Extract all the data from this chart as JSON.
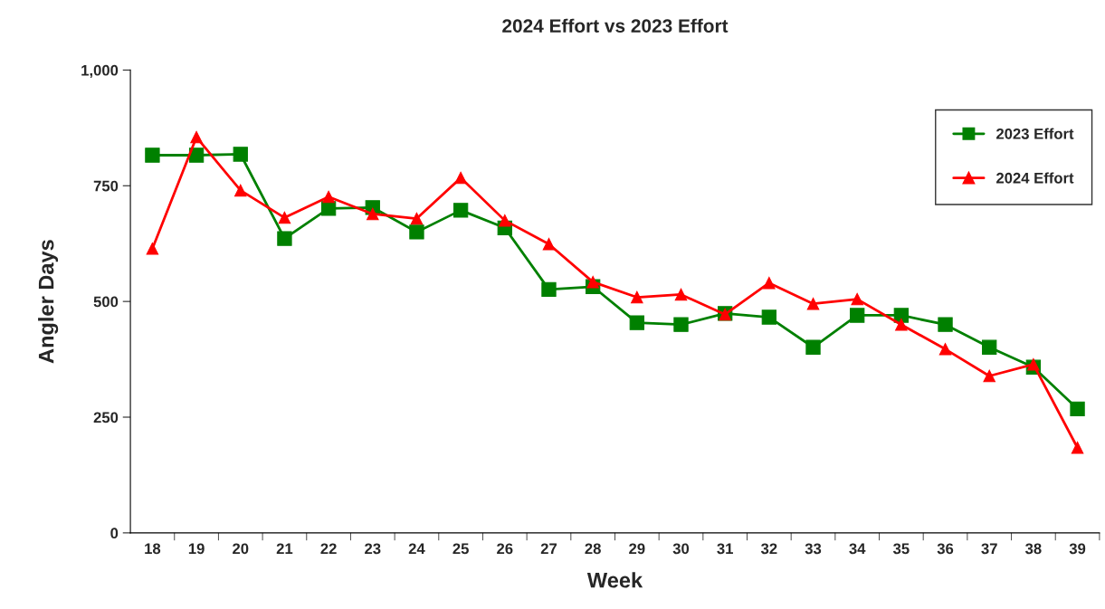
{
  "chart_data": {
    "type": "line",
    "title": "2024 Effort vs 2023 Effort",
    "xlabel": "Week",
    "ylabel": "Angler Days",
    "categories": [
      "18",
      "19",
      "20",
      "21",
      "22",
      "23",
      "24",
      "25",
      "26",
      "27",
      "28",
      "29",
      "30",
      "31",
      "32",
      "33",
      "34",
      "35",
      "36",
      "37",
      "38",
      "39"
    ],
    "series": [
      {
        "name": "2023 Effort",
        "color": "#008000",
        "marker": "square",
        "values": [
          816,
          816,
          818,
          636,
          701,
          703,
          650,
          697,
          659,
          526,
          532,
          454,
          450,
          474,
          466,
          401,
          470,
          470,
          450,
          401,
          358,
          268
        ]
      },
      {
        "name": "2024 Effort",
        "color": "#ff0000",
        "marker": "triangle",
        "values": [
          614,
          855,
          740,
          681,
          726,
          689,
          679,
          767,
          675,
          624,
          542,
          509,
          515,
          472,
          540,
          495,
          505,
          450,
          397,
          339,
          364,
          184
        ]
      }
    ],
    "ylim": [
      0,
      1000
    ],
    "yticks": [
      0,
      250,
      500,
      750,
      {
        "value": 1000,
        "label": "1,000"
      }
    ],
    "grid": false,
    "legend": "top right",
    "line_style": "solid"
  }
}
